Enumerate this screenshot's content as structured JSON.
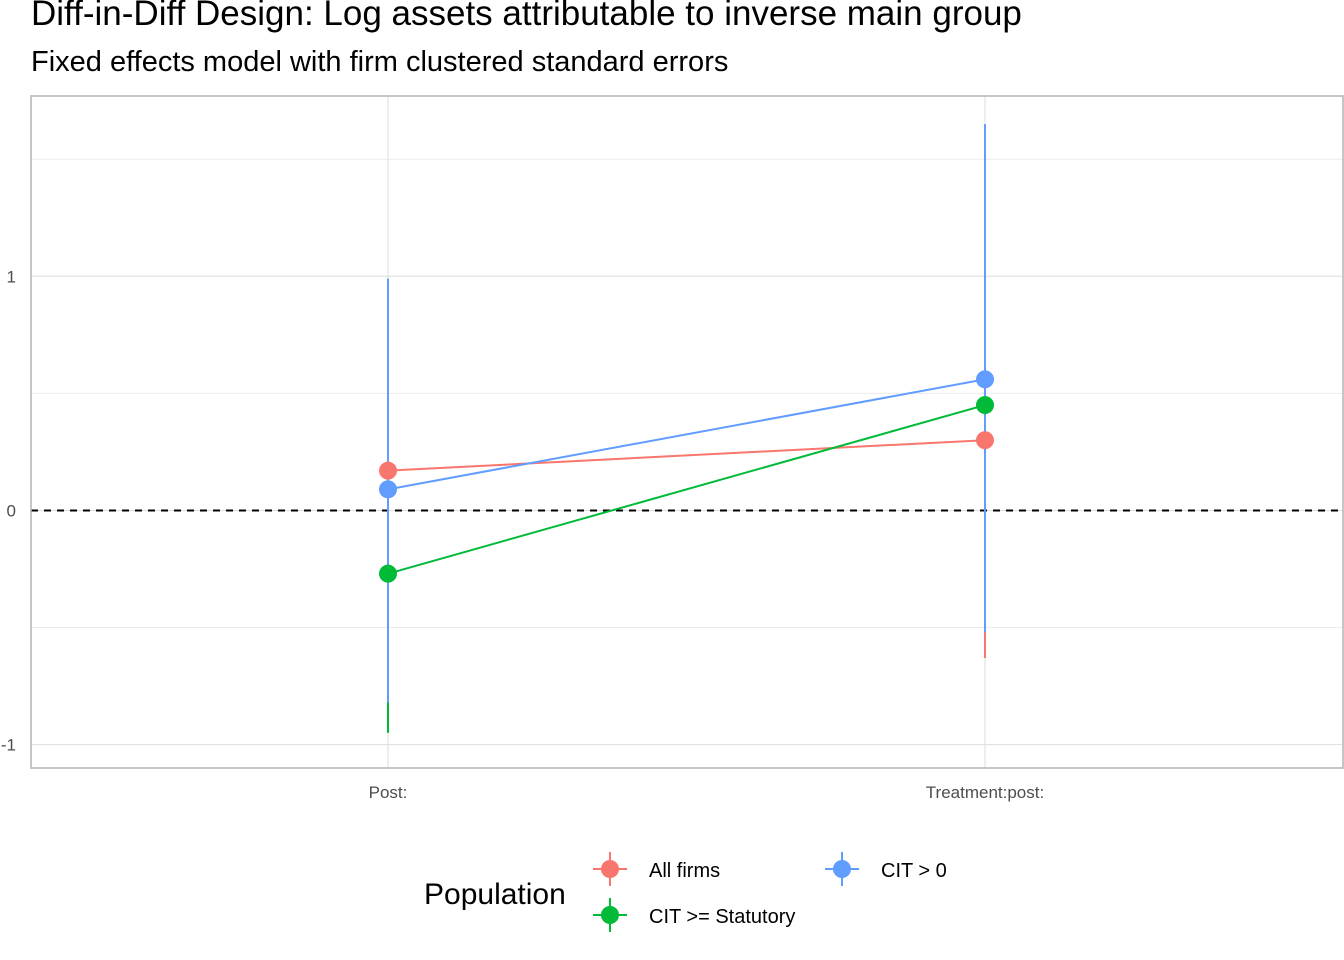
{
  "chart_data": {
    "type": "line",
    "title": "Diff-in-Diff Design: Log assets attributable to inverse main group",
    "subtitle": "Fixed effects model with firm clustered standard errors",
    "xlabel": "",
    "ylabel": "",
    "categories": [
      "Post:",
      "Treatment:post:"
    ],
    "y_ticks": [
      -1,
      0,
      1
    ],
    "ylim": [
      -1.1,
      1.77
    ],
    "grid": true,
    "reference_line": {
      "y": 0,
      "style": "dashed"
    },
    "legend": {
      "title": "Population",
      "placement": "bottom"
    },
    "series": [
      {
        "name": "All firms",
        "color": "#F8766D",
        "values": [
          0.17,
          0.3
        ],
        "lower": [
          -0.62,
          -0.63
        ],
        "upper": [
          0.96,
          1.23
        ]
      },
      {
        "name": "CIT >= Statutory",
        "color": "#00BA38",
        "values": [
          -0.27,
          0.45
        ],
        "lower": [
          -0.95,
          -0.51
        ],
        "upper": [
          0.41,
          1.41
        ]
      },
      {
        "name": "CIT > 0",
        "color": "#619CFF",
        "values": [
          0.09,
          0.56
        ],
        "lower": [
          -0.82,
          -0.52
        ],
        "upper": [
          0.99,
          1.65
        ]
      }
    ]
  }
}
